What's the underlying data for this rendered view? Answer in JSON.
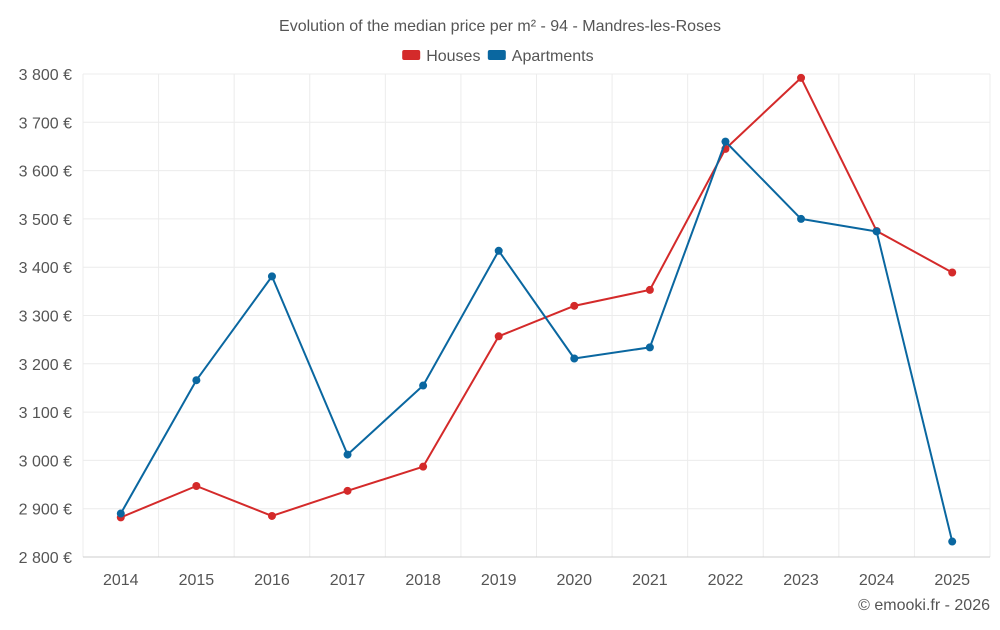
{
  "chart_data": {
    "type": "line",
    "title": "Evolution of the median price per m² - 94 - Mandres-les-Roses",
    "categories": [
      "2014",
      "2015",
      "2016",
      "2017",
      "2018",
      "2019",
      "2020",
      "2021",
      "2022",
      "2023",
      "2024",
      "2025"
    ],
    "series": [
      {
        "name": "Houses",
        "color": "#d42a2a",
        "values": [
          2882,
          2947,
          2885,
          2937,
          2987,
          3257,
          3320,
          3353,
          3645,
          3792,
          3475,
          3389
        ]
      },
      {
        "name": "Apartments",
        "color": "#0a67a0",
        "values": [
          2890,
          3166,
          3381,
          3012,
          3155,
          3434,
          3211,
          3234,
          3660,
          3500,
          3474,
          2832
        ]
      }
    ],
    "ylim": [
      2800,
      3800
    ],
    "yticks": [
      2800,
      2900,
      3000,
      3100,
      3200,
      3300,
      3400,
      3500,
      3600,
      3700,
      3800
    ],
    "ytick_labels": [
      "2 800 €",
      "2 900 €",
      "3 000 €",
      "3 100 €",
      "3 200 €",
      "3 300 €",
      "3 400 €",
      "3 500 €",
      "3 600 €",
      "3 700 €",
      "3 800 €"
    ],
    "xlabel": "",
    "ylabel": "",
    "grid": true,
    "legend_position": "top-center"
  },
  "credit": "© emooki.fr - 2026"
}
